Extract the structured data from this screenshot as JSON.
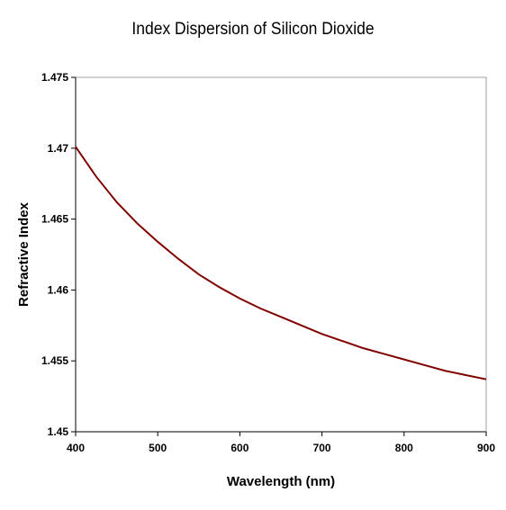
{
  "chart_data": {
    "type": "line",
    "title": "Index Dispersion of Silicon Dioxide",
    "xlabel": "Wavelength (nm)",
    "ylabel": "Refractive Index",
    "xlim": [
      400,
      900
    ],
    "ylim": [
      1.45,
      1.475
    ],
    "x_ticks": [
      "400",
      "500",
      "600",
      "700",
      "800",
      "900"
    ],
    "y_ticks": [
      "1.45",
      "1.455",
      "1.46",
      "1.465",
      "1.47",
      "1.475"
    ],
    "grid": false,
    "legend": "none",
    "line_color": "#800000",
    "series": [
      {
        "x": [
          400,
          425,
          450,
          475,
          500,
          525,
          550,
          575,
          600,
          625,
          650,
          675,
          700,
          725,
          750,
          775,
          800,
          825,
          850,
          875,
          900
        ],
        "values": [
          1.4701,
          1.468,
          1.4662,
          1.4647,
          1.4634,
          1.4622,
          1.4611,
          1.4602,
          1.4594,
          1.4587,
          1.4581,
          1.4575,
          1.4569,
          1.4564,
          1.4559,
          1.4555,
          1.4551,
          1.4547,
          1.4543,
          1.454,
          1.4537
        ]
      }
    ]
  }
}
